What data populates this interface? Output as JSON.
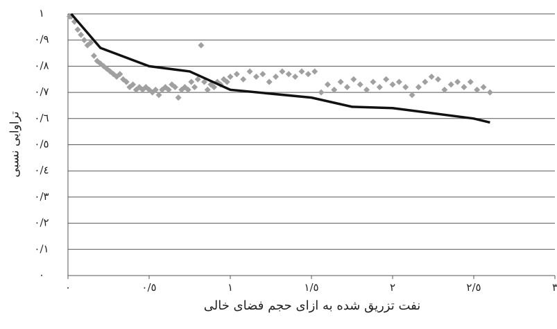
{
  "chart_data": {
    "type": "scatter",
    "xlabel": "نفت تزریق شده به ازای حجم فضای خالی",
    "ylabel": "تراوایی نسبی",
    "xlim": [
      0,
      3
    ],
    "ylim": [
      0,
      1
    ],
    "xticks": [
      {
        "value": 0,
        "label": "۰"
      },
      {
        "value": 0.5,
        "label": "۰/٥"
      },
      {
        "value": 1,
        "label": "۱"
      },
      {
        "value": 1.5,
        "label": "۱/٥"
      },
      {
        "value": 2,
        "label": "۲"
      },
      {
        "value": 2.5,
        "label": "۲/٥"
      },
      {
        "value": 3,
        "label": "۳"
      }
    ],
    "yticks": [
      {
        "value": 0,
        "label": "۰"
      },
      {
        "value": 0.1,
        "label": "۰/۱"
      },
      {
        "value": 0.2,
        "label": "۰/۲"
      },
      {
        "value": 0.3,
        "label": "۰/۳"
      },
      {
        "value": 0.4,
        "label": "۰/٤"
      },
      {
        "value": 0.5,
        "label": "۰/٥"
      },
      {
        "value": 0.6,
        "label": "۰/٦"
      },
      {
        "value": 0.7,
        "label": "۰/۷"
      },
      {
        "value": 0.8,
        "label": "۰/۸"
      },
      {
        "value": 0.9,
        "label": "۰/۹"
      },
      {
        "value": 1,
        "label": "۱"
      }
    ],
    "grid": true,
    "series": [
      {
        "type": "scatter",
        "color": "#a0a0a0",
        "x": [
          0.01,
          0.02,
          0.04,
          0.06,
          0.08,
          0.1,
          0.12,
          0.14,
          0.16,
          0.18,
          0.2,
          0.22,
          0.24,
          0.26,
          0.28,
          0.3,
          0.32,
          0.34,
          0.36,
          0.38,
          0.4,
          0.42,
          0.44,
          0.46,
          0.48,
          0.5,
          0.52,
          0.54,
          0.56,
          0.58,
          0.6,
          0.62,
          0.64,
          0.66,
          0.68,
          0.7,
          0.72,
          0.74,
          0.76,
          0.78,
          0.8,
          0.82,
          0.84,
          0.86,
          0.88,
          0.9,
          0.92,
          0.94,
          0.96,
          0.98,
          1.0,
          1.04,
          1.08,
          1.12,
          1.16,
          1.2,
          1.24,
          1.28,
          1.32,
          1.36,
          1.4,
          1.44,
          1.48,
          1.52,
          1.56,
          1.6,
          1.64,
          1.68,
          1.72,
          1.76,
          1.8,
          1.84,
          1.88,
          1.92,
          1.96,
          2.0,
          2.04,
          2.08,
          2.12,
          2.16,
          2.2,
          2.24,
          2.28,
          2.32,
          2.36,
          2.4,
          2.44,
          2.48,
          2.52,
          2.56,
          2.6
        ],
        "values": [
          0.99,
          0.99,
          0.97,
          0.94,
          0.92,
          0.9,
          0.88,
          0.89,
          0.84,
          0.82,
          0.81,
          0.8,
          0.79,
          0.78,
          0.77,
          0.76,
          0.77,
          0.75,
          0.74,
          0.72,
          0.73,
          0.71,
          0.72,
          0.71,
          0.72,
          0.71,
          0.7,
          0.71,
          0.69,
          0.71,
          0.72,
          0.71,
          0.73,
          0.72,
          0.68,
          0.71,
          0.72,
          0.71,
          0.74,
          0.72,
          0.75,
          0.88,
          0.74,
          0.71,
          0.73,
          0.72,
          0.74,
          0.73,
          0.75,
          0.74,
          0.76,
          0.77,
          0.75,
          0.78,
          0.76,
          0.77,
          0.74,
          0.76,
          0.78,
          0.77,
          0.76,
          0.78,
          0.77,
          0.78,
          0.7,
          0.73,
          0.71,
          0.74,
          0.72,
          0.75,
          0.73,
          0.71,
          0.74,
          0.72,
          0.75,
          0.73,
          0.74,
          0.72,
          0.69,
          0.72,
          0.74,
          0.76,
          0.75,
          0.71,
          0.73,
          0.74,
          0.72,
          0.74,
          0.71,
          0.72,
          0.7
        ]
      },
      {
        "type": "line",
        "color": "#111111",
        "x": [
          0.02,
          0.2,
          0.5,
          0.75,
          1.0,
          1.5,
          1.75,
          2.0,
          2.25,
          2.5,
          2.6
        ],
        "values": [
          1.0,
          0.87,
          0.8,
          0.78,
          0.71,
          0.68,
          0.645,
          0.64,
          0.62,
          0.6,
          0.585
        ]
      }
    ]
  }
}
